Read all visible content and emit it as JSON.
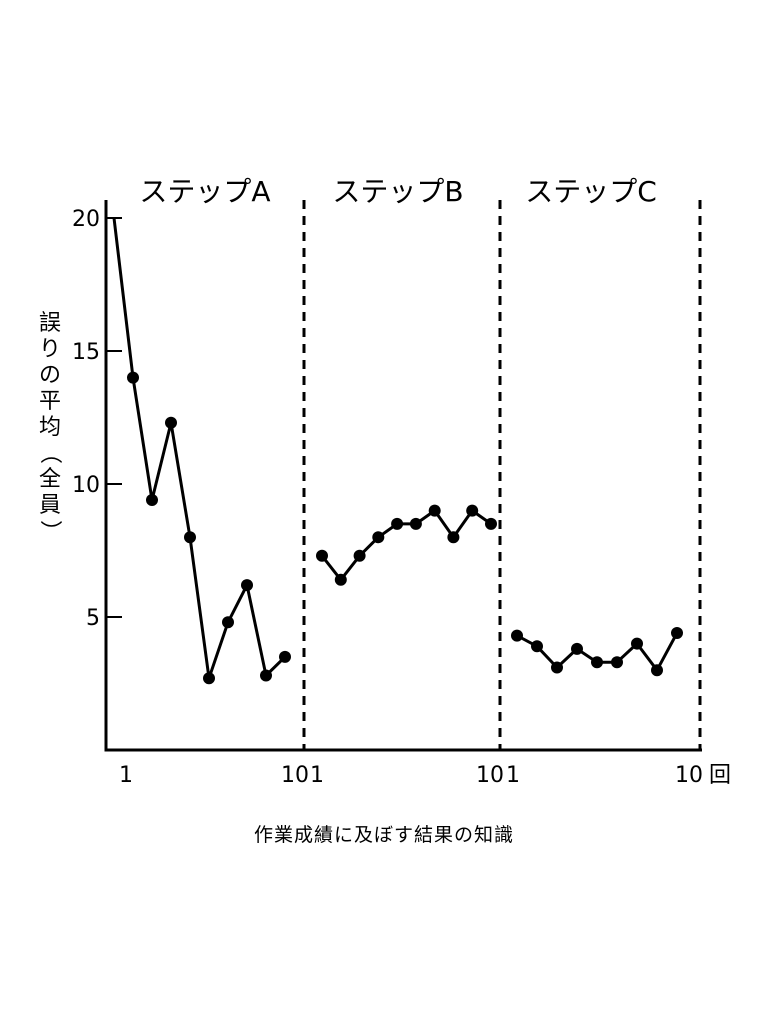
{
  "chart_data": {
    "type": "line",
    "ylabel": "誤りの平均（全員）",
    "ylim": [
      0,
      20
    ],
    "yticks": [
      "20",
      "15",
      "10",
      "5"
    ],
    "ytick_values": [
      20,
      15,
      10,
      5
    ],
    "x_tick_labels": [
      "1",
      "10",
      "1",
      "10",
      "1",
      "10",
      "回"
    ],
    "grid": false,
    "panels": [
      {
        "title": "ステップA",
        "series": [
          {
            "values": [
              20,
              14,
              9.4,
              12.3,
              8.0,
              2.7,
              4.8,
              6.2,
              2.8,
              3.5
            ]
          }
        ]
      },
      {
        "title": "ステップB",
        "series": [
          {
            "values": [
              7.3,
              6.4,
              7.3,
              8.0,
              8.5,
              8.5,
              9.0,
              8.0,
              9.0,
              8.5
            ]
          }
        ]
      },
      {
        "title": "ステップC",
        "series": [
          {
            "values": [
              4.3,
              3.9,
              3.1,
              3.8,
              3.3,
              3.3,
              4.0,
              3.0,
              4.4
            ]
          }
        ]
      }
    ]
  },
  "caption": "作業成績に及ぼす結果の知識"
}
